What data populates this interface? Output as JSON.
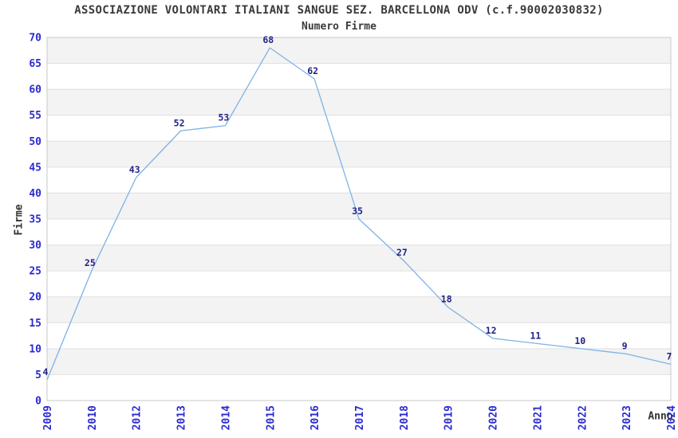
{
  "chart_data": {
    "type": "line",
    "title": "ASSOCIAZIONE VOLONTARI ITALIANI SANGUE SEZ. BARCELLONA ODV (c.f.90002030832)",
    "subtitle": "Numero Firme",
    "xlabel": "Anno",
    "ylabel": "Firme",
    "categories": [
      "2009",
      "2010",
      "2012",
      "2013",
      "2014",
      "2015",
      "2016",
      "2017",
      "2018",
      "2019",
      "2020",
      "2021",
      "2022",
      "2023",
      "2024"
    ],
    "values": [
      4,
      25,
      43,
      52,
      53,
      68,
      62,
      35,
      27,
      18,
      12,
      11,
      10,
      9,
      7
    ],
    "ylim": [
      0,
      70
    ],
    "ytick_step": 5,
    "grid": true,
    "legend": "none",
    "point_labels_shown": true,
    "colors": {
      "line": "#7fb2e5",
      "tick_label": "#2a2ad2",
      "point_label": "#222288",
      "band": "#f3f3f3",
      "band_alt": "#ffffff",
      "gridline": "#e0e0e0",
      "plot_border": "#c8c8c8",
      "text": "#3a3a3a",
      "background": "#ffffff"
    }
  }
}
